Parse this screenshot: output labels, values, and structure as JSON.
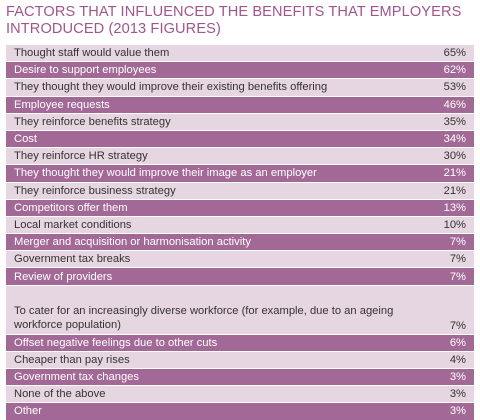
{
  "title": "FACTORS THAT INFLUENCED THE BENEFITS THAT EMPLOYERS INTRODUCED (2013 FIGURES)",
  "rows": [
    {
      "label": "Thought staff would value them",
      "value": "65%"
    },
    {
      "label": "Desire to support employees",
      "value": "62%"
    },
    {
      "label": "They thought they would improve their existing benefits offering",
      "value": "53%"
    },
    {
      "label": "Employee requests",
      "value": "46%"
    },
    {
      "label": "They reinforce benefits strategy",
      "value": "35%"
    },
    {
      "label": "Cost",
      "value": "34%"
    },
    {
      "label": "They reinforce HR strategy",
      "value": "30%"
    },
    {
      "label": "They thought they would improve their image as an employer",
      "value": "21%"
    },
    {
      "label": "They reinforce business strategy",
      "value": "21%"
    },
    {
      "label": "Competitors offer them",
      "value": "13%"
    },
    {
      "label": "Local market conditions",
      "value": "10%"
    },
    {
      "label": "Merger and acquisition or harmonisation activity",
      "value": "7%"
    },
    {
      "label": "Government tax breaks",
      "value": "7%"
    },
    {
      "label": "Review of providers",
      "value": "7%"
    },
    {
      "label": "To cater for an increasingly diverse workforce (for example, due to an ageing workforce population)",
      "value": "7%"
    },
    {
      "label": "Offset negative feelings due to other cuts",
      "value": "6%"
    },
    {
      "label": "Cheaper than pay rises",
      "value": "4%"
    },
    {
      "label": "Government tax changes",
      "value": "3%"
    },
    {
      "label": "None of the above",
      "value": "3%"
    },
    {
      "label": "Other",
      "value": "3%"
    }
  ],
  "colors": {
    "title": "#a0568c",
    "row_light": "#e6d6e2",
    "row_dark": "#a36996"
  }
}
